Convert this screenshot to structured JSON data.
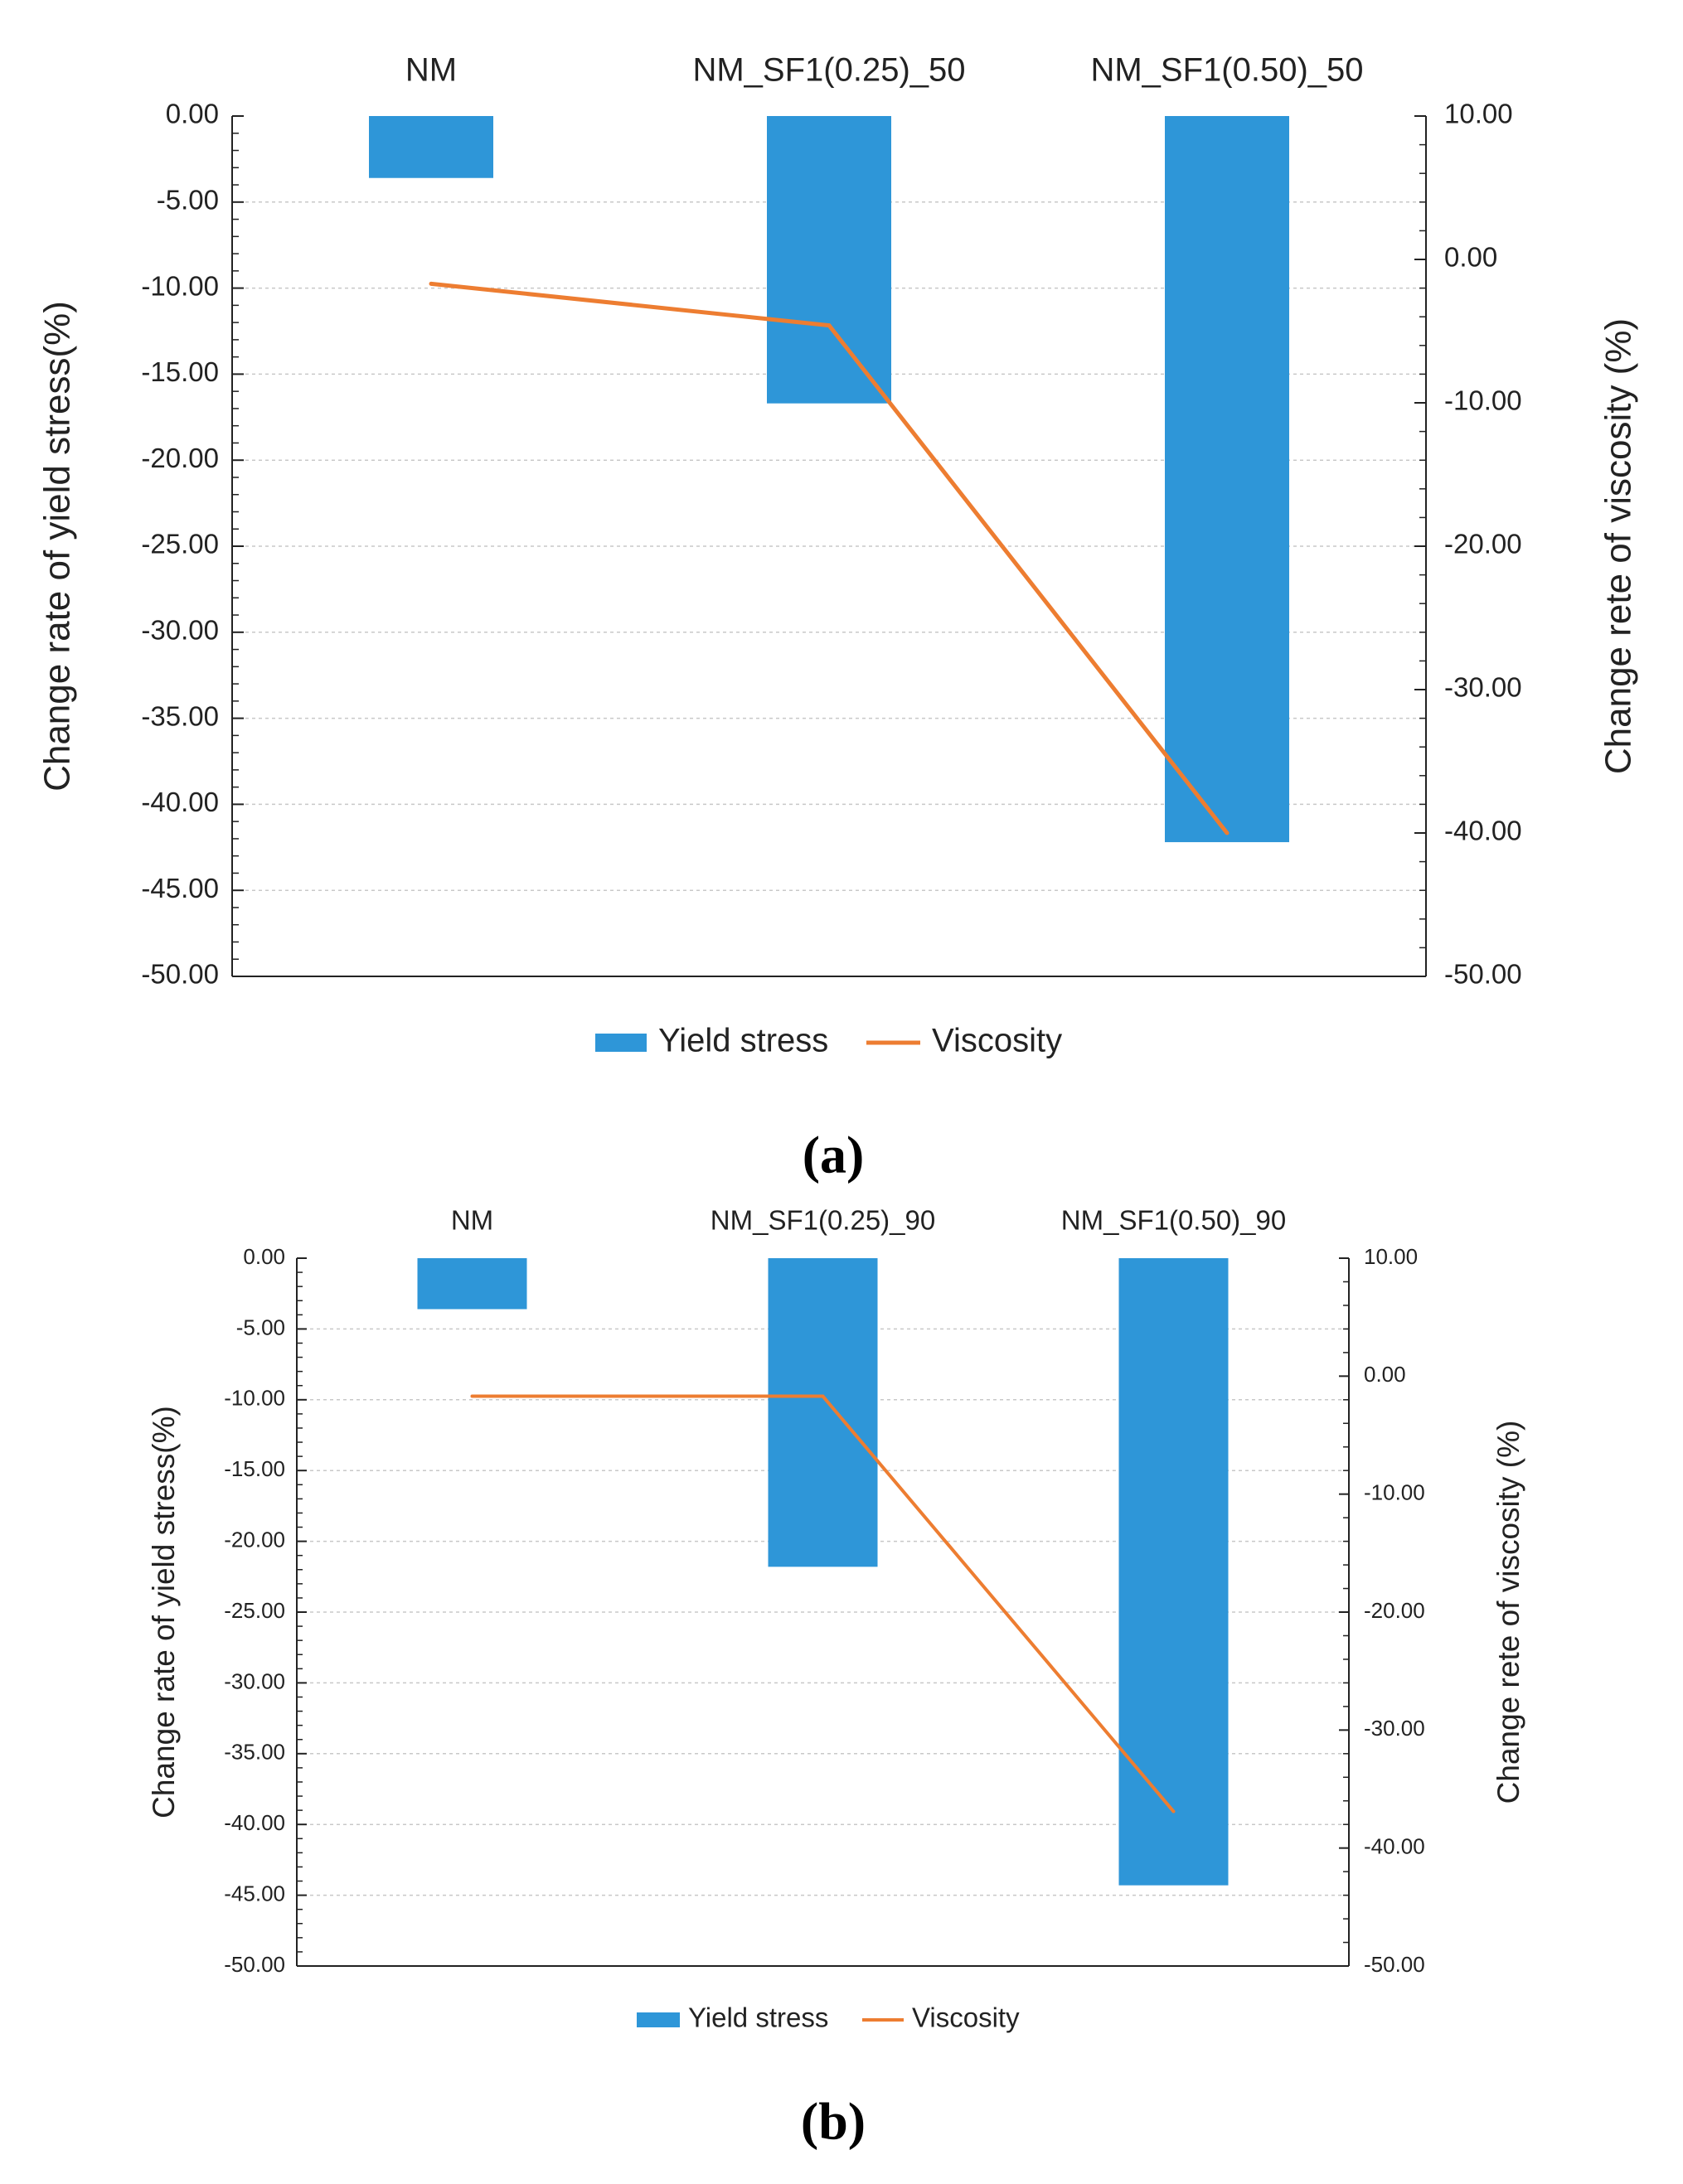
{
  "colors": {
    "bar": "#2e96d8",
    "line": "#ed7d31",
    "axis": "#222222",
    "grid": "#c8c8c8"
  },
  "legend": {
    "bar_label": "Yield stress",
    "line_label": "Viscosity"
  },
  "chart_data": [
    {
      "panel": "a",
      "caption": "(a)",
      "type": "bar+line",
      "categories": [
        "NM",
        "NM_SF1(0.25)_50",
        "NM_SF1(0.50)_50"
      ],
      "category_position": "top",
      "series": [
        {
          "name": "Yield stress",
          "type": "bar",
          "axis": "left",
          "values": [
            -3.6,
            -16.7,
            -42.2
          ]
        },
        {
          "name": "Viscosity",
          "type": "line",
          "axis": "right",
          "values": [
            -1.7,
            -4.6,
            -40.0
          ]
        }
      ],
      "left_axis": {
        "label": "Change rate of yield stress(%)",
        "range": [
          -50,
          0
        ],
        "step": 5,
        "tick_labels": [
          "0.00",
          "-5.00",
          "-10.00",
          "-15.00",
          "-20.00",
          "-25.00",
          "-30.00",
          "-35.00",
          "-40.00",
          "-45.00",
          "-50.00"
        ]
      },
      "right_axis": {
        "label": "Change rete of viscosity (%)",
        "range": [
          -50,
          10
        ],
        "step": 10,
        "tick_labels": [
          "10.00",
          "0.00",
          "-10.00",
          "-20.00",
          "-30.00",
          "-40.00",
          "-50.00"
        ]
      },
      "grid": true,
      "legend_placement": "bottom"
    },
    {
      "panel": "b",
      "caption": "(b)",
      "type": "bar+line",
      "categories": [
        "NM",
        "NM_SF1(0.25)_90",
        "NM_SF1(0.50)_90"
      ],
      "category_position": "top",
      "series": [
        {
          "name": "Yield stress",
          "type": "bar",
          "axis": "left",
          "values": [
            -3.6,
            -21.8,
            -44.3
          ]
        },
        {
          "name": "Viscosity",
          "type": "line",
          "axis": "right",
          "values": [
            -1.7,
            -1.7,
            -36.9
          ]
        }
      ],
      "left_axis": {
        "label": "Change rate of yield stress(%)",
        "range": [
          -50,
          0
        ],
        "step": 5,
        "tick_labels": [
          "0.00",
          "-5.00",
          "-10.00",
          "-15.00",
          "-20.00",
          "-25.00",
          "-30.00",
          "-35.00",
          "-40.00",
          "-45.00",
          "-50.00"
        ]
      },
      "right_axis": {
        "label": "Change rete of viscosity (%)",
        "range": [
          -50,
          10
        ],
        "step": 10,
        "tick_labels": [
          "10.00",
          "0.00",
          "-10.00",
          "-20.00",
          "-30.00",
          "-40.00",
          "-50.00"
        ]
      },
      "grid": true,
      "legend_placement": "bottom"
    }
  ]
}
